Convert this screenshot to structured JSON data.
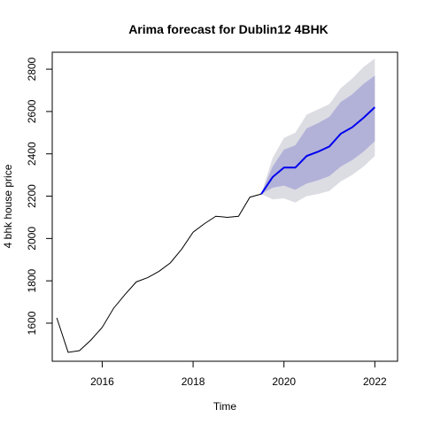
{
  "chart_data": {
    "type": "line",
    "title": "Arima forecast for Dublin12 4BHK",
    "xlabel": "Time",
    "ylabel": "4 bhk house price",
    "xlim": [
      2014.9,
      2022.5
    ],
    "ylim": [
      1420,
      2880
    ],
    "x_ticks": [
      2016,
      2018,
      2020,
      2022
    ],
    "y_ticks": [
      1600,
      1800,
      2000,
      2200,
      2400,
      2600,
      2800
    ],
    "grid": false,
    "legend": "none",
    "colors": {
      "history": "#000000",
      "forecast": "#0000ee",
      "band_80": "#b2b2d9",
      "band_95": "#dcdce3"
    },
    "history": {
      "x": [
        2015.0,
        2015.25,
        2015.5,
        2015.75,
        2016.0,
        2016.25,
        2016.5,
        2016.75,
        2017.0,
        2017.25,
        2017.5,
        2017.75,
        2018.0,
        2018.25,
        2018.5,
        2018.75,
        2019.0,
        2019.25,
        2019.5
      ],
      "y": [
        1625,
        1462,
        1470,
        1520,
        1580,
        1670,
        1735,
        1795,
        1815,
        1845,
        1885,
        1950,
        2030,
        2070,
        2105,
        2100,
        2105,
        2195,
        2210
      ]
    },
    "forecast": {
      "x": [
        2019.5,
        2019.75,
        2020.0,
        2020.25,
        2020.5,
        2020.75,
        2021.0,
        2021.25,
        2021.5,
        2021.75,
        2022.0
      ],
      "y": [
        2210,
        2290,
        2335,
        2335,
        2390,
        2410,
        2435,
        2495,
        2525,
        2570,
        2620
      ],
      "lo80": [
        2210,
        2240,
        2250,
        2230,
        2260,
        2275,
        2295,
        2340,
        2370,
        2410,
        2460
      ],
      "hi80": [
        2210,
        2340,
        2420,
        2440,
        2520,
        2545,
        2575,
        2645,
        2680,
        2730,
        2770
      ],
      "lo95": [
        2210,
        2185,
        2190,
        2170,
        2200,
        2210,
        2225,
        2270,
        2300,
        2340,
        2390
      ],
      "hi95": [
        2210,
        2380,
        2475,
        2500,
        2585,
        2610,
        2635,
        2710,
        2755,
        2810,
        2850
      ]
    }
  }
}
